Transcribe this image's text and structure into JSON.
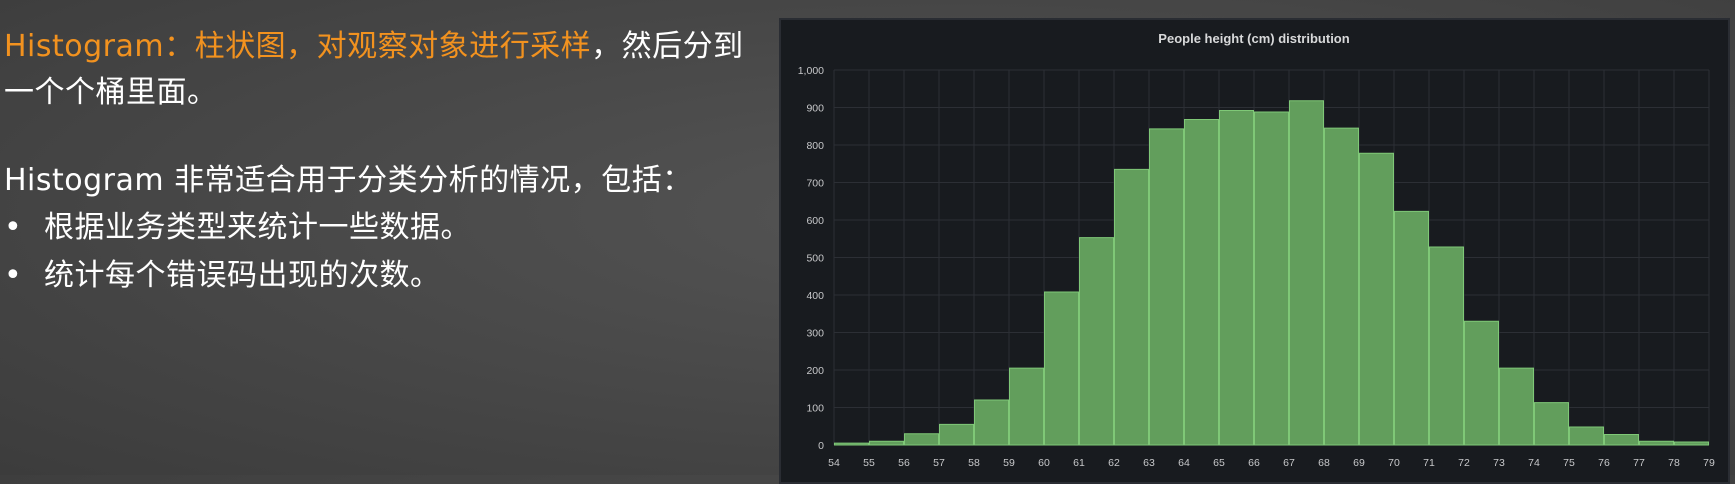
{
  "slide": {
    "intro_highlight": "Histogram：柱状图，对观察对象进行采样",
    "intro_rest": "，然后分到一个个桶里面。",
    "usage_title": "Histogram 非常适合用于分类分析的情况，包括：",
    "bullets": [
      {
        "marker": "•",
        "text": "根据业务类型来统计一些数据。"
      },
      {
        "marker": "•",
        "text": "统计每个错误码出现的次数。"
      }
    ]
  },
  "colors": {
    "highlight": "#f2921f",
    "bar_fill": "#629e5c",
    "bar_edge": "#7fc877",
    "panel_bg": "#181b1f",
    "grid": "#2c2f35"
  },
  "chart_data": {
    "type": "bar",
    "title": "People height (cm) distribution",
    "bin_edges": [
      54,
      55,
      56,
      57,
      58,
      59,
      60,
      61,
      62,
      63,
      64,
      65,
      66,
      67,
      68,
      69,
      70,
      71,
      72,
      73,
      74,
      75,
      76,
      77,
      78,
      79
    ],
    "values": [
      5,
      10,
      30,
      55,
      120,
      205,
      408,
      553,
      735,
      843,
      868,
      892,
      888,
      918,
      845,
      778,
      623,
      528,
      330,
      205,
      113,
      48,
      28,
      10,
      8
    ],
    "yticks": [
      "0",
      "100",
      "200",
      "300",
      "400",
      "500",
      "600",
      "700",
      "800",
      "900",
      "1,000"
    ],
    "ylim": [
      0,
      1000
    ],
    "xlabel": "",
    "ylabel": "",
    "grid": true,
    "legend": "none"
  }
}
